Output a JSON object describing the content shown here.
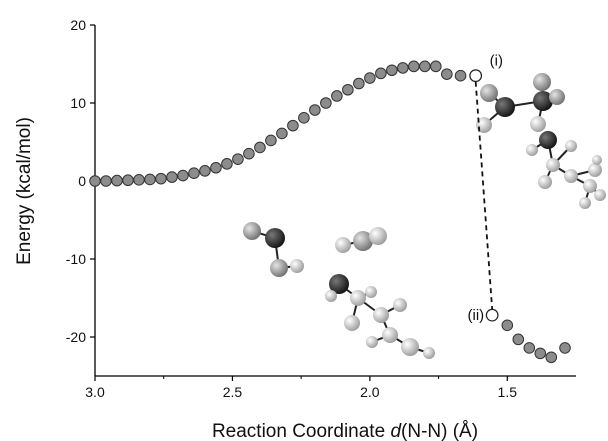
{
  "chart_data": {
    "type": "scatter",
    "xlabel_prefix": "Reaction Coordinate ",
    "xlabel_var": "d",
    "xlabel_suffix": "(N-N) (Å)",
    "ylabel": "Energy (kcal/mol)",
    "xlim": [
      3.0,
      1.25
    ],
    "ylim": [
      -25,
      20
    ],
    "x_ticks": [
      3.0,
      2.5,
      2.0,
      1.5
    ],
    "x_tick_labels": [
      "3.0",
      "2.5",
      "2.0",
      "1.5"
    ],
    "y_ticks": [
      20,
      10,
      0,
      -10,
      -20
    ],
    "y_tick_labels": [
      "20",
      "10",
      "0",
      "-10",
      "-20"
    ],
    "grid": false,
    "series": [
      {
        "points": [
          [
            3.0,
            0.0
          ],
          [
            2.96,
            0.0
          ],
          [
            2.92,
            0.05
          ],
          [
            2.88,
            0.1
          ],
          [
            2.84,
            0.15
          ],
          [
            2.8,
            0.2
          ],
          [
            2.76,
            0.3
          ],
          [
            2.72,
            0.5
          ],
          [
            2.68,
            0.7
          ],
          [
            2.64,
            1.0
          ],
          [
            2.6,
            1.3
          ],
          [
            2.56,
            1.7
          ],
          [
            2.52,
            2.2
          ],
          [
            2.48,
            2.8
          ],
          [
            2.44,
            3.5
          ],
          [
            2.4,
            4.3
          ],
          [
            2.36,
            5.2
          ],
          [
            2.32,
            6.1
          ],
          [
            2.28,
            7.1
          ],
          [
            2.24,
            8.1
          ],
          [
            2.2,
            9.1
          ],
          [
            2.16,
            10.0
          ],
          [
            2.12,
            10.9
          ],
          [
            2.08,
            11.7
          ],
          [
            2.04,
            12.5
          ],
          [
            2.0,
            13.2
          ],
          [
            1.96,
            13.8
          ],
          [
            1.92,
            14.2
          ],
          [
            1.88,
            14.5
          ],
          [
            1.84,
            14.7
          ],
          [
            1.8,
            14.7
          ],
          [
            1.76,
            14.7
          ],
          [
            1.72,
            13.7
          ],
          [
            1.67,
            13.5
          ],
          [
            1.5,
            -18.5
          ],
          [
            1.46,
            -20.3
          ],
          [
            1.42,
            -21.4
          ],
          [
            1.38,
            -22.1
          ],
          [
            1.34,
            -22.6
          ],
          [
            1.29,
            -21.4
          ]
        ]
      }
    ],
    "open_points": [
      {
        "label": "(i)",
        "x": 1.615,
        "y": 13.5
      },
      {
        "label": "(ii)",
        "x": 1.555,
        "y": -17.2
      }
    ],
    "dashed_connector": {
      "from": "(i)",
      "to": "(ii)"
    },
    "colors": {
      "marker_fill": "#8c8c8c",
      "marker_stroke": "#333333",
      "open_marker_fill": "#ffffff",
      "axis": "#000000",
      "atom_dark": "#222222",
      "atom_mid": "#888888",
      "atom_light": "#dddddd"
    }
  }
}
